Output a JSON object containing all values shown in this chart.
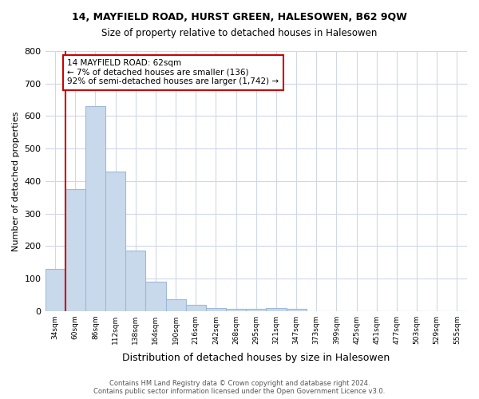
{
  "title1": "14, MAYFIELD ROAD, HURST GREEN, HALESOWEN, B62 9QW",
  "title2": "Size of property relative to detached houses in Halesowen",
  "xlabel": "Distribution of detached houses by size in Halesowen",
  "ylabel": "Number of detached properties",
  "bins": [
    "34sqm",
    "60sqm",
    "86sqm",
    "112sqm",
    "138sqm",
    "164sqm",
    "190sqm",
    "216sqm",
    "242sqm",
    "268sqm",
    "295sqm",
    "321sqm",
    "347sqm",
    "373sqm",
    "399sqm",
    "425sqm",
    "451sqm",
    "477sqm",
    "503sqm",
    "529sqm",
    "555sqm"
  ],
  "values": [
    130,
    375,
    630,
    430,
    185,
    90,
    37,
    20,
    10,
    7,
    6,
    10,
    7,
    0,
    0,
    0,
    0,
    0,
    0,
    0,
    0
  ],
  "bar_color": "#c9d9ec",
  "bar_edge_color": "#a0b8d8",
  "marker_color": "#cc0000",
  "annotation_text": "14 MAYFIELD ROAD: 62sqm\n← 7% of detached houses are smaller (136)\n92% of semi-detached houses are larger (1,742) →",
  "annotation_box_color": "#ffffff",
  "annotation_box_edge": "#cc0000",
  "ylim": [
    0,
    800
  ],
  "yticks": [
    0,
    100,
    200,
    300,
    400,
    500,
    600,
    700,
    800
  ],
  "footer": "Contains HM Land Registry data © Crown copyright and database right 2024.\nContains public sector information licensed under the Open Government Licence v3.0.",
  "bg_color": "#ffffff",
  "grid_color": "#d0d8e8"
}
